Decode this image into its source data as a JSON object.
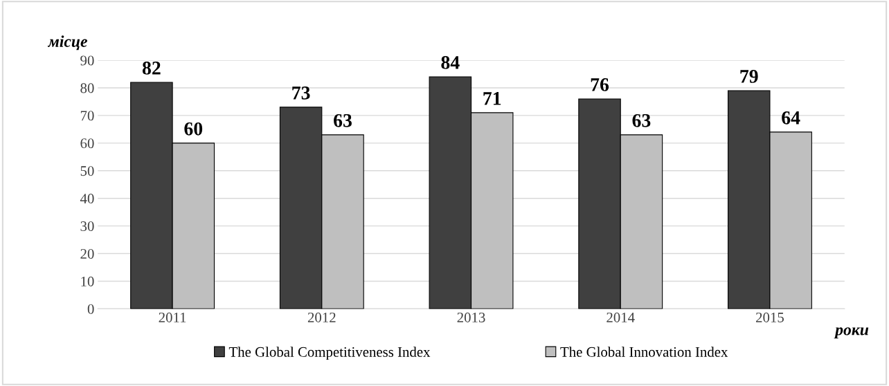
{
  "chart_data": {
    "type": "bar",
    "xlabel": "роки",
    "ylabel": "місце",
    "categories": [
      "2011",
      "2012",
      "2013",
      "2014",
      "2015"
    ],
    "series": [
      {
        "name": "The Global Competitiveness Index",
        "color": "#404040",
        "values": [
          82,
          73,
          84,
          76,
          79
        ]
      },
      {
        "name": "The Global Innovation Index",
        "color": "#bfbfbf",
        "values": [
          60,
          63,
          71,
          63,
          64
        ]
      }
    ],
    "ylim": [
      0,
      90
    ],
    "yticks": [
      0,
      10,
      20,
      30,
      40,
      50,
      60,
      70,
      80,
      90
    ],
    "grid": "y",
    "legend": "bottom",
    "data_labels": true
  }
}
